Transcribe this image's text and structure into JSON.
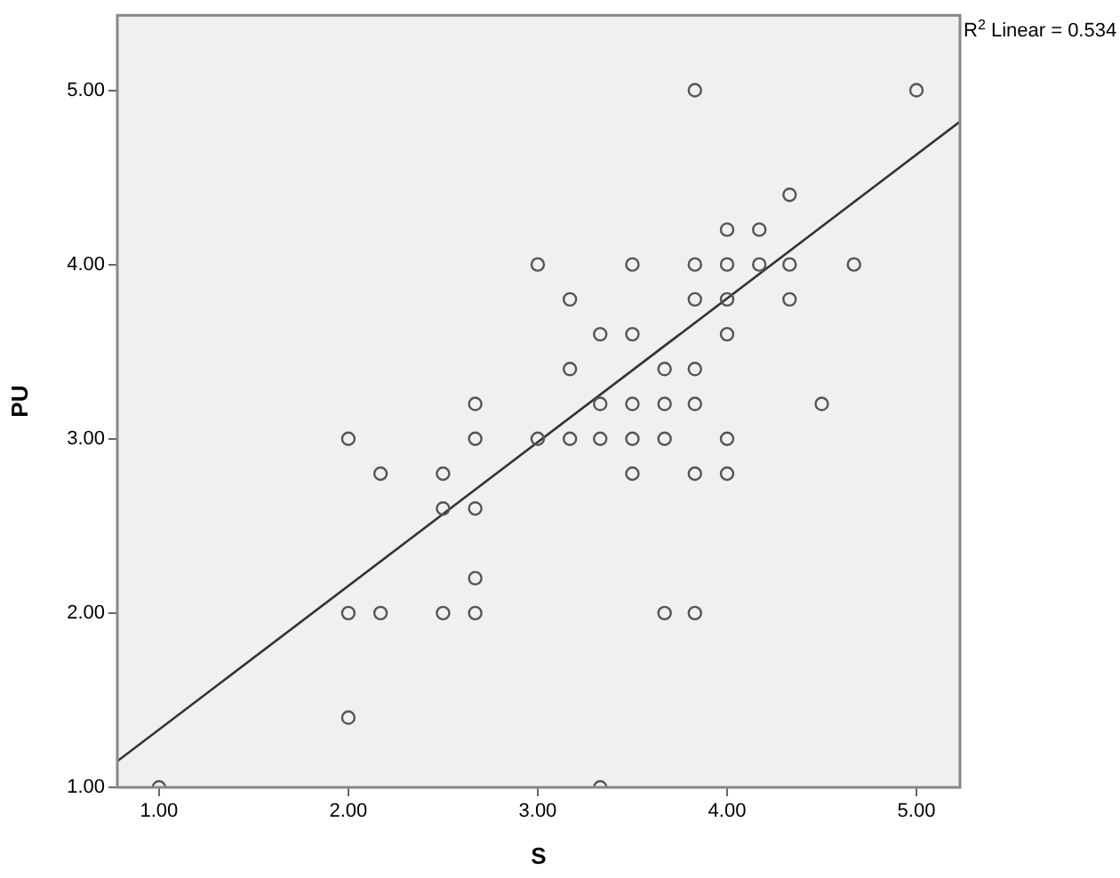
{
  "chart_data": {
    "type": "scatter",
    "xlabel": "S",
    "ylabel": "PU",
    "xlim": [
      0.78,
      5.23
    ],
    "ylim": [
      1,
      5.43
    ],
    "xticks": [
      {
        "value": 1,
        "label": "1.00"
      },
      {
        "value": 2,
        "label": "2.00"
      },
      {
        "value": 3,
        "label": "3.00"
      },
      {
        "value": 4,
        "label": "4.00"
      },
      {
        "value": 5,
        "label": "5.00"
      }
    ],
    "yticks": [
      {
        "value": 1,
        "label": "1.00"
      },
      {
        "value": 2,
        "label": "2.00"
      },
      {
        "value": 3,
        "label": "3.00"
      },
      {
        "value": 4,
        "label": "4.00"
      },
      {
        "value": 5,
        "label": "5.00"
      }
    ],
    "annotations": [
      "R$^{2}$ Linear = 0.534"
    ],
    "series": [
      {
        "color": "#555555",
        "marker": "circle",
        "x": [
          1,
          2,
          2,
          2,
          2.17,
          2.17,
          2.5,
          2.5,
          2.5,
          2.67,
          2.67,
          2.67,
          2.67,
          2.67,
          3,
          3,
          3.17,
          3.17,
          3.17,
          3.33,
          3.33,
          3.33,
          3.33,
          3.5,
          3.5,
          3.5,
          3.5,
          3.5,
          3.67,
          3.67,
          3.67,
          3.67,
          3.83,
          3.83,
          3.83,
          3.83,
          3.83,
          3.83,
          3.83,
          4,
          4,
          4,
          4,
          4,
          4,
          4.17,
          4.17,
          4.33,
          4.33,
          4.33,
          4.5,
          4.67,
          5
        ],
        "values": [
          1,
          3,
          2,
          1.4,
          2.8,
          2,
          2.8,
          2.6,
          2,
          3.2,
          3,
          2.6,
          2.2,
          2,
          4,
          3,
          3.8,
          3.4,
          3,
          3.6,
          3.2,
          3,
          1,
          4,
          3.6,
          3.2,
          3,
          2.8,
          3.4,
          3.2,
          3,
          2,
          5,
          4,
          3.8,
          3.4,
          3.2,
          2.8,
          2,
          4.2,
          4,
          3.8,
          3.6,
          3,
          2.8,
          4.2,
          4,
          4.4,
          4,
          3.8,
          3.2,
          4,
          5
        ]
      },
      {
        "type": "line",
        "color": "#333333",
        "marker": "none",
        "line_style": "solid",
        "x": [
          0.78,
          5.23
        ],
        "values": [
          1.15,
          4.82
        ]
      }
    ]
  }
}
